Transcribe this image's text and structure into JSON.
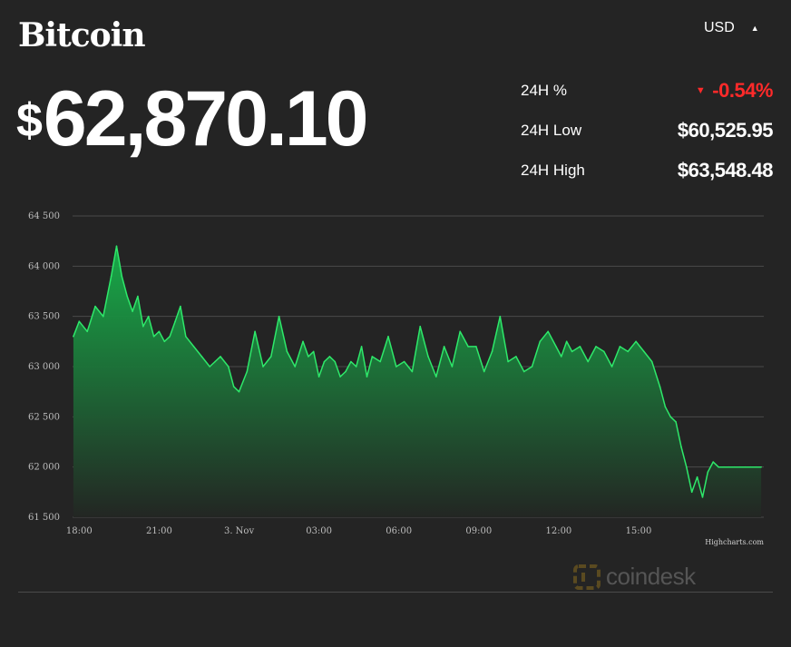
{
  "header": {
    "title": "Bitcoin",
    "price_symbol": "$",
    "price_value": "62,870.10",
    "currency_selector": "USD"
  },
  "stats": [
    {
      "label": "24H %",
      "value": "-0.54%",
      "direction": "down"
    },
    {
      "label": "24H Low",
      "value": "$60,525.95"
    },
    {
      "label": "24H High",
      "value": "$63,548.48"
    }
  ],
  "credit": "Highcharts.com",
  "watermark": "coindesk",
  "colors": {
    "background": "#242424",
    "line": "#2ee86a",
    "fill_top": "#17b04a",
    "fill_bottom": "#232623",
    "negative": "#ff2a2a",
    "grid": "#4a4a4a"
  },
  "chart_data": {
    "type": "area",
    "title": "",
    "xlabel": "",
    "ylabel": "",
    "ylim": [
      61500,
      64500
    ],
    "yticks": [
      61500,
      62000,
      62500,
      63000,
      63500,
      64000,
      64500
    ],
    "ytick_labels": [
      "61 500",
      "62 000",
      "62 500",
      "63 000",
      "63 500",
      "64 000",
      "64 500"
    ],
    "xlim": [
      17.75,
      43.7
    ],
    "xticks": [
      18,
      21,
      24,
      27,
      30,
      33,
      36,
      39
    ],
    "xtick_labels": [
      "18:00",
      "21:00",
      "3. Nov",
      "03:00",
      "06:00",
      "09:00",
      "12:00",
      "15:00"
    ],
    "grid": true,
    "x": [
      17.78,
      18.0,
      18.3,
      18.6,
      18.9,
      19.2,
      19.4,
      19.6,
      19.8,
      20.0,
      20.2,
      20.4,
      20.6,
      20.8,
      21.0,
      21.2,
      21.4,
      21.6,
      21.8,
      22.0,
      22.3,
      22.6,
      22.9,
      23.1,
      23.3,
      23.6,
      23.8,
      24.0,
      24.3,
      24.6,
      24.9,
      25.2,
      25.5,
      25.8,
      26.1,
      26.4,
      26.6,
      26.8,
      27.0,
      27.2,
      27.4,
      27.6,
      27.8,
      28.0,
      28.2,
      28.4,
      28.6,
      28.8,
      29.0,
      29.3,
      29.6,
      29.9,
      30.2,
      30.5,
      30.8,
      31.1,
      31.4,
      31.7,
      32.0,
      32.3,
      32.6,
      32.9,
      33.2,
      33.5,
      33.8,
      34.1,
      34.4,
      34.7,
      35.0,
      35.3,
      35.6,
      35.9,
      36.1,
      36.3,
      36.5,
      36.8,
      37.1,
      37.4,
      37.7,
      38.0,
      38.3,
      38.6,
      38.9,
      39.2,
      39.5,
      39.8,
      40.0,
      40.2,
      40.4,
      40.6,
      40.8,
      41.0,
      41.2,
      41.4,
      41.6,
      41.8,
      42.0,
      42.2,
      42.4,
      42.6,
      42.8,
      43.0,
      43.2,
      43.4,
      43.6
    ],
    "values": [
      63300,
      63450,
      63350,
      63600,
      63500,
      63900,
      64200,
      63900,
      63700,
      63550,
      63700,
      63400,
      63500,
      63300,
      63350,
      63250,
      63300,
      63450,
      63600,
      63300,
      63200,
      63100,
      63000,
      63050,
      63100,
      63000,
      62800,
      62750,
      62950,
      63350,
      63000,
      63100,
      63500,
      63150,
      63000,
      63250,
      63100,
      63150,
      62900,
      63050,
      63100,
      63050,
      62900,
      62950,
      63050,
      63000,
      63200,
      62900,
      63100,
      63050,
      63300,
      63000,
      63050,
      62950,
      63400,
      63100,
      62900,
      63200,
      63000,
      63350,
      63200,
      63200,
      62950,
      63150,
      63500,
      63050,
      63100,
      62950,
      63000,
      63250,
      63350,
      63200,
      63100,
      63250,
      63150,
      63200,
      63050,
      63200,
      63150,
      63000,
      63200,
      63150,
      63250,
      63150,
      63050,
      62800,
      62600,
      62500,
      62450,
      62200,
      62000,
      61750,
      61900,
      61700,
      61950,
      62050,
      62000,
      62000,
      62000,
      62000,
      62000,
      62000,
      62000,
      62000,
      62000
    ]
  }
}
